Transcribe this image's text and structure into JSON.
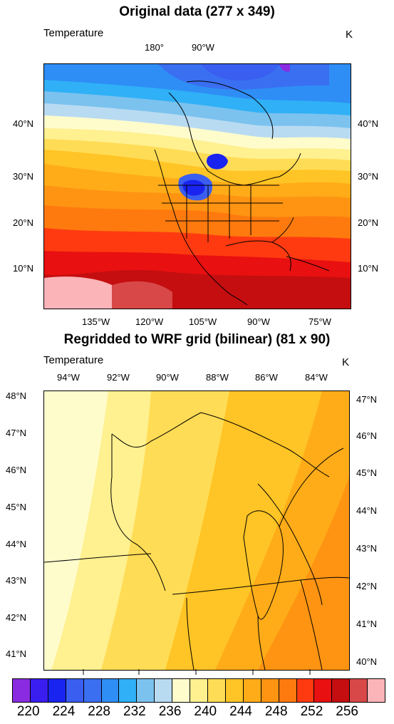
{
  "panel1": {
    "title": "Original data (277 x 349)",
    "left_label": "Temperature",
    "right_label": "K",
    "top_ticks": [
      "180°",
      "90°W"
    ],
    "left_ticks": [
      "40°N",
      "30°N",
      "20°N",
      "10°N"
    ],
    "right_ticks": [
      "40°N",
      "30°N",
      "20°N",
      "10°N"
    ],
    "bottom_ticks": [
      "135°W",
      "120°W",
      "105°W",
      "90°W",
      "75°W"
    ]
  },
  "panel2": {
    "title": "Regridded to WRF grid (bilinear) (81 x 90)",
    "left_label": "Temperature",
    "right_label": "K",
    "top_ticks": [
      "94°W",
      "92°W",
      "90°W",
      "88°W",
      "86°W",
      "84°W"
    ],
    "left_ticks": [
      "48°N",
      "47°N",
      "46°N",
      "45°N",
      "44°N",
      "43°N",
      "42°N",
      "41°N"
    ],
    "right_ticks": [
      "47°N",
      "46°N",
      "45°N",
      "44°N",
      "43°N",
      "42°N",
      "41°N",
      "40°N"
    ]
  },
  "colorbar": {
    "colors": [
      "#8a2be2",
      "#3a1ef0",
      "#1a24f0",
      "#3a5ef0",
      "#3a6ff2",
      "#2e8ef5",
      "#2fb0f7",
      "#7bc2ee",
      "#b9dbf2",
      "#fffccc",
      "#fff090",
      "#ffdc55",
      "#ffc425",
      "#ffac18",
      "#ff9412",
      "#ff7a0e",
      "#ff3a10",
      "#e81010",
      "#c40e10",
      "#d84848",
      "#fbb4b8"
    ],
    "labels": [
      "220",
      "224",
      "228",
      "232",
      "236",
      "240",
      "244",
      "248",
      "252",
      "256"
    ]
  }
}
